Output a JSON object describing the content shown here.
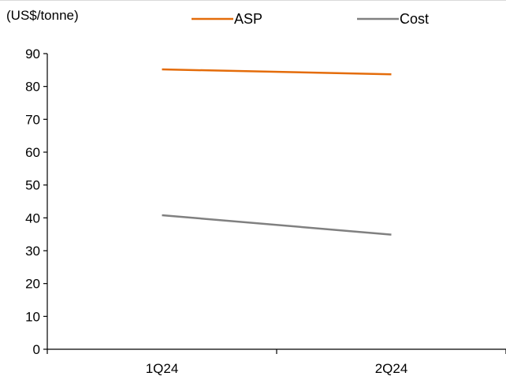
{
  "chart_data": {
    "type": "line",
    "unit_label": "(US$/tonne)",
    "categories": [
      "1Q24",
      "2Q24"
    ],
    "series": [
      {
        "name": "ASP",
        "values": [
          85.2,
          83.7
        ],
        "color": "#E46C0A"
      },
      {
        "name": "Cost",
        "values": [
          40.8,
          34.9
        ],
        "color": "#808080"
      }
    ],
    "ylim": [
      0,
      90
    ],
    "yticks": [
      0,
      10,
      20,
      30,
      40,
      50,
      60,
      70,
      80,
      90
    ],
    "grid": false,
    "legend_position": "top"
  }
}
